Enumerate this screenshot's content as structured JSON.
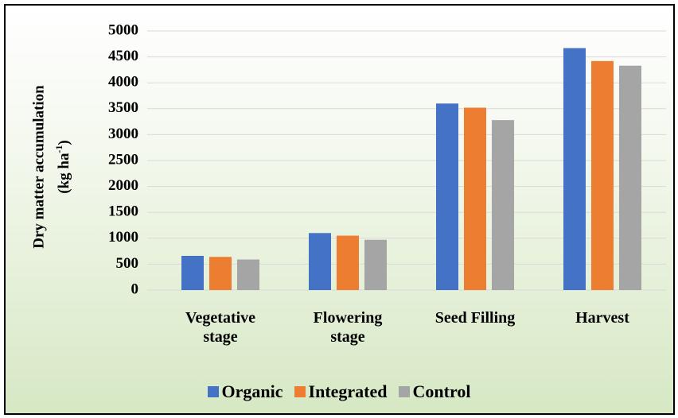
{
  "chart_data": {
    "type": "bar",
    "y_label": [
      "Dry matter accumulation",
      "(kg ha",
      "-1",
      ")"
    ],
    "categories": [
      "Vegetative stage",
      "Flowering stage",
      "Seed Filling",
      "Harvest"
    ],
    "series": [
      {
        "name": "Organic",
        "color": "#4472c4",
        "values": [
          660,
          1100,
          3600,
          4670
        ]
      },
      {
        "name": "Integrated",
        "color": "#ed7d31",
        "values": [
          640,
          1050,
          3520,
          4420
        ]
      },
      {
        "name": "Control",
        "color": "#a5a5a5",
        "values": [
          590,
          970,
          3280,
          4330
        ]
      }
    ],
    "ylim": [
      0,
      5000
    ],
    "yticks": [
      0,
      500,
      1000,
      1500,
      2000,
      2500,
      3000,
      3500,
      4000,
      4500,
      5000
    ],
    "grid": true,
    "legend": "bottom"
  }
}
